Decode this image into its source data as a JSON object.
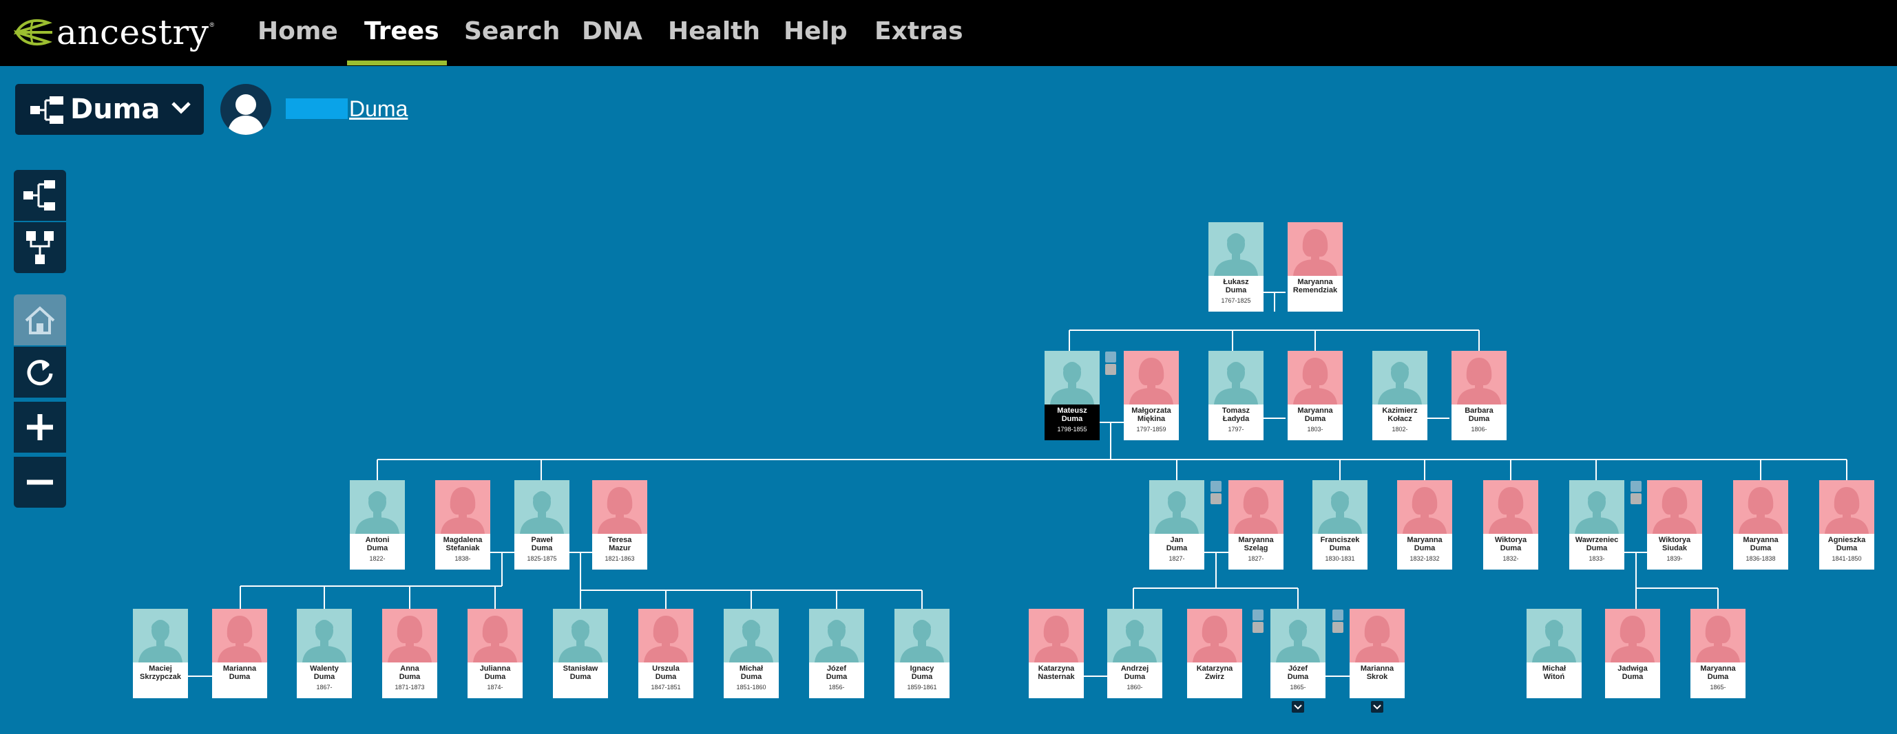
{
  "app": {
    "name": "ancestry"
  },
  "nav": {
    "items": [
      {
        "label": "Home",
        "active": false
      },
      {
        "label": "Trees",
        "active": true
      },
      {
        "label": "Search",
        "active": false
      },
      {
        "label": "DNA",
        "active": false
      },
      {
        "label": "Health",
        "active": false
      },
      {
        "label": "Help",
        "active": false
      },
      {
        "label": "Extras",
        "active": false
      }
    ],
    "accent_color": "#9cbe30"
  },
  "tree_selector": {
    "label": "Duma",
    "icon": "pedigree-tree-icon"
  },
  "home_person": {
    "name": "Duma",
    "avatar": "avatar-silhouette-icon"
  },
  "toolbar": {
    "tools": [
      {
        "name": "pedigree-view-button",
        "icon": "pedigree-view-icon",
        "enabled": true
      },
      {
        "name": "family-view-button",
        "icon": "family-view-icon",
        "enabled": true
      },
      {
        "name": "home-person-button",
        "icon": "home-icon",
        "enabled": false
      },
      {
        "name": "reset-view-button",
        "icon": "refresh-icon",
        "enabled": true
      },
      {
        "name": "zoom-in-button",
        "icon": "plus-icon",
        "enabled": true
      },
      {
        "name": "zoom-out-button",
        "icon": "minus-icon",
        "enabled": true
      }
    ]
  },
  "colors": {
    "background": "#0377a8",
    "male": "#9fd5d6",
    "female": "#f5a4ab",
    "focus": "#000000",
    "lines": "#ffffff"
  },
  "people": [
    {
      "id": "lukasz",
      "first": "Łukasz",
      "last": "Duma",
      "dates": "1767-1825",
      "sex": "m"
    },
    {
      "id": "maryanna_r",
      "first": "Maryanna",
      "last": "Remendziak",
      "dates": "",
      "sex": "f"
    },
    {
      "id": "mateusz",
      "first": "Mateusz",
      "last": "Duma",
      "dates": "1798-1855",
      "sex": "m",
      "focus": true
    },
    {
      "id": "malgorzata",
      "first": "Małgorzata",
      "last": "Miękina",
      "dates": "1797-1859",
      "sex": "f"
    },
    {
      "id": "tomasz",
      "first": "Tomasz",
      "last": "Ładyda",
      "dates": "1797-",
      "sex": "m"
    },
    {
      "id": "maryanna_d1",
      "first": "Maryanna",
      "last": "Duma",
      "dates": "1803-",
      "sex": "f"
    },
    {
      "id": "kazimierz",
      "first": "Kazimierz",
      "last": "Kołacz",
      "dates": "1802-",
      "sex": "m"
    },
    {
      "id": "barbara",
      "first": "Barbara",
      "last": "Duma",
      "dates": "1806-",
      "sex": "f"
    },
    {
      "id": "antoni",
      "first": "Antoni",
      "last": "Duma",
      "dates": "1822-",
      "sex": "m"
    },
    {
      "id": "magdalena",
      "first": "Magdalena",
      "last": "Stefaniak",
      "dates": "1838-",
      "sex": "f"
    },
    {
      "id": "pawel",
      "first": "Paweł",
      "last": "Duma",
      "dates": "1825-1875",
      "sex": "m"
    },
    {
      "id": "teresa",
      "first": "Teresa",
      "last": "Mazur",
      "dates": "1821-1863",
      "sex": "f"
    },
    {
      "id": "jan",
      "first": "Jan",
      "last": "Duma",
      "dates": "1827-",
      "sex": "m"
    },
    {
      "id": "maryanna_s",
      "first": "Maryanna",
      "last": "Szeląg",
      "dates": "1827-",
      "sex": "f"
    },
    {
      "id": "franciszek",
      "first": "Franciszek",
      "last": "Duma",
      "dates": "1830-1831",
      "sex": "m"
    },
    {
      "id": "maryanna_d2",
      "first": "Maryanna",
      "last": "Duma",
      "dates": "1832-1832",
      "sex": "f"
    },
    {
      "id": "wiktorya_d",
      "first": "Wiktorya",
      "last": "Duma",
      "dates": "1832-",
      "sex": "f"
    },
    {
      "id": "wawrzeniec",
      "first": "Wawrzeniec",
      "last": "Duma",
      "dates": "1833-",
      "sex": "m"
    },
    {
      "id": "wiktorya_s",
      "first": "Wiktorya",
      "last": "Siudak",
      "dates": "1839-",
      "sex": "f"
    },
    {
      "id": "maryanna_d3",
      "first": "Maryanna",
      "last": "Duma",
      "dates": "1836-1838",
      "sex": "f"
    },
    {
      "id": "agnieszka",
      "first": "Agnieszka",
      "last": "Duma",
      "dates": "1841-1850",
      "sex": "f"
    },
    {
      "id": "maciej",
      "first": "Maciej",
      "last": "Skrzypczak",
      "dates": "",
      "sex": "m"
    },
    {
      "id": "marianna_d",
      "first": "Marianna",
      "last": "Duma",
      "dates": "",
      "sex": "f"
    },
    {
      "id": "walenty",
      "first": "Walenty",
      "last": "Duma",
      "dates": "1867-",
      "sex": "m"
    },
    {
      "id": "anna",
      "first": "Anna",
      "last": "Duma",
      "dates": "1871-1873",
      "sex": "f"
    },
    {
      "id": "julianna",
      "first": "Julianna",
      "last": "Duma",
      "dates": "1874-",
      "sex": "f"
    },
    {
      "id": "stanislaw",
      "first": "Stanisław",
      "last": "Duma",
      "dates": "",
      "sex": "m"
    },
    {
      "id": "urszula",
      "first": "Urszula",
      "last": "Duma",
      "dates": "1847-1851",
      "sex": "f"
    },
    {
      "id": "michal_d",
      "first": "Michał",
      "last": "Duma",
      "dates": "1851-1860",
      "sex": "m"
    },
    {
      "id": "jozef_d1",
      "first": "Józef",
      "last": "Duma",
      "dates": "1856-",
      "sex": "m"
    },
    {
      "id": "ignacy",
      "first": "Ignacy",
      "last": "Duma",
      "dates": "1859-1861",
      "sex": "m"
    },
    {
      "id": "katarzyna_n",
      "first": "Katarzyna",
      "last": "Nasternak",
      "dates": "",
      "sex": "f"
    },
    {
      "id": "andrzej",
      "first": "Andrzej",
      "last": "Duma",
      "dates": "1860-",
      "sex": "m"
    },
    {
      "id": "katarzyna_z",
      "first": "Katarzyna",
      "last": "Zwirz",
      "dates": "",
      "sex": "f"
    },
    {
      "id": "jozef_d2",
      "first": "Józef",
      "last": "Duma",
      "dates": "1865-",
      "sex": "m"
    },
    {
      "id": "marianna_s",
      "first": "Marianna",
      "last": "Skrok",
      "dates": "",
      "sex": "f"
    },
    {
      "id": "michal_w",
      "first": "Michał",
      "last": "Witoń",
      "dates": "",
      "sex": "m"
    },
    {
      "id": "jadwiga",
      "first": "Jadwiga",
      "last": "Duma",
      "dates": "",
      "sex": "f"
    },
    {
      "id": "maryanna_d4",
      "first": "Maryanna",
      "last": "Duma",
      "dates": "1865-",
      "sex": "f"
    }
  ]
}
